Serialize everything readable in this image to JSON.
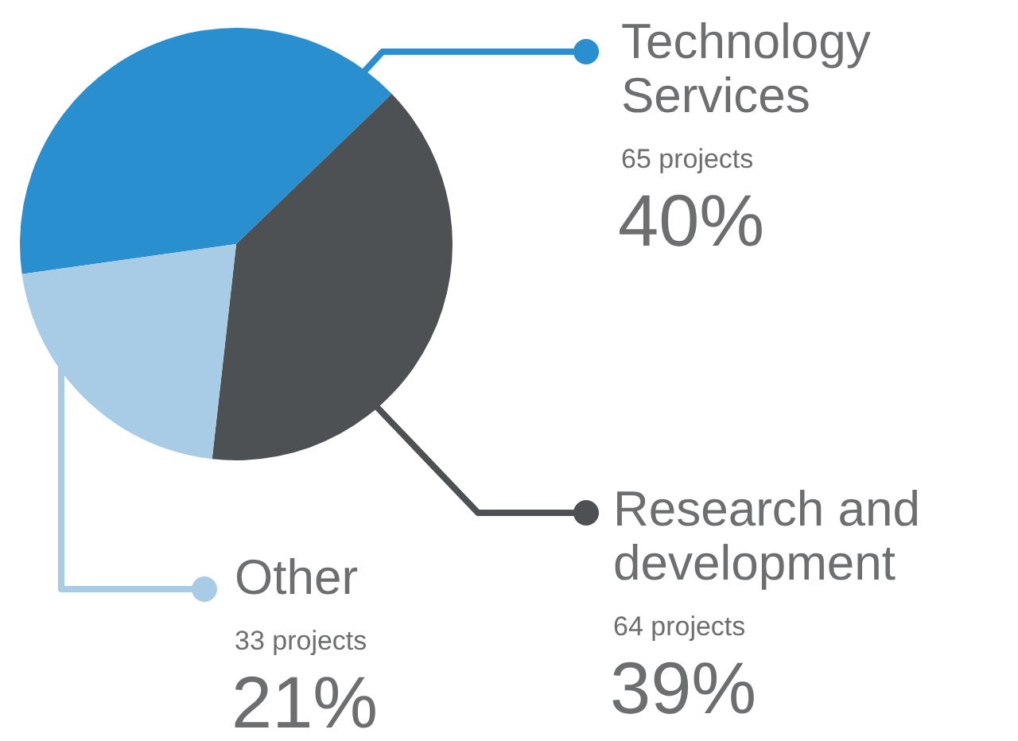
{
  "chart_data": {
    "type": "pie",
    "categories": [
      "Technology Services",
      "Research and development",
      "Other"
    ],
    "values": [
      40,
      39,
      21
    ],
    "legend": "right",
    "colors": [
      "#2a8fcf",
      "#4d5153",
      "#a9cce6"
    ],
    "value_labels": [
      "40%",
      "39%",
      "21%"
    ],
    "annotations": [
      "65 projects",
      "64 projects",
      "33 projects"
    ]
  }
}
